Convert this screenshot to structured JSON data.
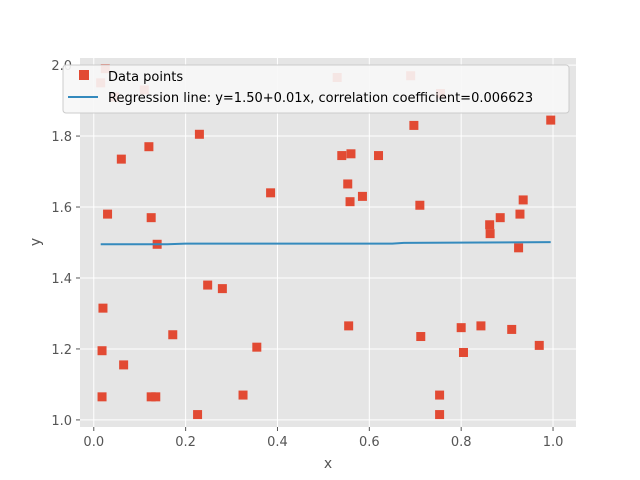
{
  "chart_data": {
    "type": "scatter",
    "title": "",
    "xlabel": "x",
    "ylabel": "y",
    "xlim": [
      -0.03,
      1.05
    ],
    "ylim": [
      0.98,
      2.02
    ],
    "xticks": [
      0.0,
      0.2,
      0.4,
      0.6,
      0.8,
      1.0
    ],
    "xtick_labels": [
      "0.0",
      "0.2",
      "0.4",
      "0.6",
      "0.8",
      "1.0"
    ],
    "yticks": [
      1.0,
      1.2,
      1.4,
      1.6,
      1.8,
      2.0
    ],
    "ytick_labels": [
      "1.0",
      "1.2",
      "1.4",
      "1.6",
      "1.8",
      "2.0"
    ],
    "grid": true,
    "legend_position": "top-left",
    "colors": {
      "points": "#E24A33",
      "line": "#348ABD",
      "axes_background": "#E5E5E5",
      "grid": "#FFFFFF",
      "text": "#555555"
    },
    "series": [
      {
        "name": "Data points",
        "kind": "scatter",
        "marker": "square",
        "x": [
          0.015,
          0.025,
          0.045,
          0.11,
          0.53,
          0.69,
          0.697,
          0.755,
          0.995,
          0.06,
          0.12,
          0.23,
          0.385,
          0.54,
          0.56,
          0.62,
          0.553,
          0.558,
          0.585,
          0.71,
          0.935,
          0.03,
          0.125,
          0.138,
          0.862,
          0.863,
          0.885,
          0.928,
          0.925,
          0.02,
          0.248,
          0.28,
          0.018,
          0.065,
          0.172,
          0.355,
          0.555,
          0.712,
          0.8,
          0.843,
          0.91,
          0.97,
          0.805,
          0.018,
          0.125,
          0.135,
          0.325,
          0.753,
          0.226,
          0.753
        ],
        "y": [
          1.95,
          1.99,
          1.91,
          1.93,
          1.965,
          1.97,
          1.83,
          1.92,
          1.845,
          1.735,
          1.77,
          1.805,
          1.64,
          1.745,
          1.75,
          1.745,
          1.665,
          1.615,
          1.63,
          1.605,
          1.62,
          1.58,
          1.57,
          1.495,
          1.55,
          1.525,
          1.57,
          1.58,
          1.485,
          1.315,
          1.38,
          1.37,
          1.195,
          1.155,
          1.24,
          1.205,
          1.265,
          1.235,
          1.26,
          1.265,
          1.255,
          1.21,
          1.19,
          1.065,
          1.065,
          1.065,
          1.07,
          1.07,
          1.015,
          1.015
        ]
      },
      {
        "name": "Regression line: y=1.50+0.01x, correlation coefficient=0.006623",
        "kind": "line",
        "x": [
          0.015,
          0.16,
          0.2,
          0.65,
          0.675,
          0.995
        ],
        "y": [
          1.495,
          1.495,
          1.497,
          1.497,
          1.499,
          1.501
        ]
      }
    ]
  }
}
